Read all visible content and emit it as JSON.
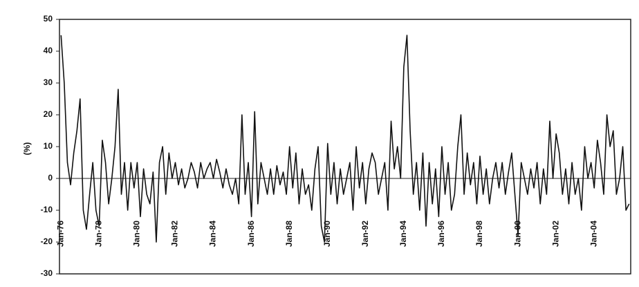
{
  "chart_data": {
    "type": "line",
    "y_label": "(%)",
    "categories": [
      "Jan-76",
      null,
      null,
      null,
      null,
      null,
      null,
      null,
      null,
      null,
      null,
      null,
      "Jan-78",
      null,
      null,
      null,
      null,
      null,
      null,
      null,
      null,
      null,
      null,
      null,
      "Jan-80",
      null,
      null,
      null,
      null,
      null,
      null,
      null,
      null,
      null,
      null,
      null,
      "Jan-82",
      null,
      null,
      null,
      null,
      null,
      null,
      null,
      null,
      null,
      null,
      null,
      "Jan-84",
      null,
      null,
      null,
      null,
      null,
      null,
      null,
      null,
      null,
      null,
      null,
      "Jan-86",
      null,
      null,
      null,
      null,
      null,
      null,
      null,
      null,
      null,
      null,
      null,
      "Jan-88",
      null,
      null,
      null,
      null,
      null,
      null,
      null,
      null,
      null,
      null,
      null,
      "Jan-90",
      null,
      null,
      null,
      null,
      null,
      null,
      null,
      null,
      null,
      null,
      null,
      "Jan-92",
      null,
      null,
      null,
      null,
      null,
      null,
      null,
      null,
      null,
      null,
      null,
      "Jan-94",
      null,
      null,
      null,
      null,
      null,
      null,
      null,
      null,
      null,
      null,
      null,
      "Jan-96",
      null,
      null,
      null,
      null,
      null,
      null,
      null,
      null,
      null,
      null,
      null,
      "Jan-98",
      null,
      null,
      null,
      null,
      null,
      null,
      null,
      null,
      null,
      null,
      null,
      "Jan-00",
      null,
      null,
      null,
      null,
      null,
      null,
      null,
      null,
      null,
      null,
      null,
      "Jan-02",
      null,
      null,
      null,
      null,
      null,
      null,
      null,
      null,
      null,
      null,
      null,
      "Jan-04",
      null,
      null,
      null,
      null,
      null,
      null,
      null,
      null,
      null,
      null,
      null
    ],
    "values": [
      45,
      30,
      5,
      -2,
      8,
      15,
      25,
      -10,
      -16,
      -5,
      5,
      -10,
      -15,
      12,
      5,
      -8,
      0,
      10,
      28,
      -5,
      5,
      -10,
      5,
      -3,
      5,
      -12,
      3,
      -5,
      -8,
      2,
      -20,
      5,
      10,
      -5,
      8,
      0,
      5,
      -2,
      3,
      -3,
      0,
      5,
      2,
      -3,
      5,
      0,
      3,
      5,
      0,
      6,
      2,
      -3,
      3,
      -2,
      -5,
      0,
      -8,
      20,
      -5,
      5,
      -12,
      21,
      -8,
      5,
      0,
      -5,
      3,
      -5,
      4,
      -2,
      2,
      -5,
      10,
      -3,
      8,
      -8,
      3,
      -5,
      -2,
      -10,
      3,
      10,
      -15,
      -20,
      11,
      -5,
      5,
      -8,
      3,
      -5,
      0,
      5,
      -10,
      10,
      -3,
      5,
      -8,
      3,
      8,
      5,
      -5,
      0,
      5,
      -10,
      18,
      3,
      10,
      0,
      35,
      45,
      15,
      -5,
      5,
      -10,
      8,
      -15,
      5,
      -8,
      3,
      -12,
      10,
      -5,
      5,
      -10,
      -5,
      10,
      20,
      -5,
      8,
      -2,
      5,
      -8,
      7,
      -5,
      3,
      -8,
      0,
      5,
      -3,
      5,
      -5,
      2,
      8,
      -5,
      -18,
      5,
      0,
      -5,
      3,
      -3,
      5,
      -8,
      3,
      -5,
      18,
      0,
      14,
      8,
      -5,
      3,
      -8,
      5,
      -5,
      0,
      -10,
      10,
      0,
      5,
      -3,
      12,
      5,
      -5,
      20,
      10,
      15,
      -5,
      0,
      10,
      -10,
      -8
    ],
    "color": "#111111",
    "ylim": [
      -30,
      50
    ],
    "yticks": [
      -30,
      -20,
      -10,
      0,
      10,
      20,
      30,
      40,
      50
    ]
  }
}
